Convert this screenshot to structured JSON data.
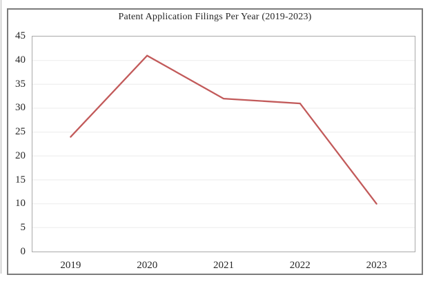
{
  "chart_data": {
    "type": "line",
    "title": "Patent Application Filings Per Year (2019-2023)",
    "categories": [
      "2019",
      "2020",
      "2021",
      "2022",
      "2023"
    ],
    "values": [
      24,
      41,
      32,
      31,
      10
    ],
    "yticks": [
      0,
      5,
      10,
      15,
      20,
      25,
      30,
      35,
      40,
      45
    ],
    "ylim": [
      0,
      45
    ],
    "xlabel": "",
    "ylabel": "",
    "grid": "horizontal",
    "legend": "none",
    "colors": {
      "line": "#c25a5a",
      "gridline": "#ebebeb",
      "plot_border": "#a8a8a8",
      "frame_border": "#7b7b7b",
      "text": "#262626"
    }
  }
}
